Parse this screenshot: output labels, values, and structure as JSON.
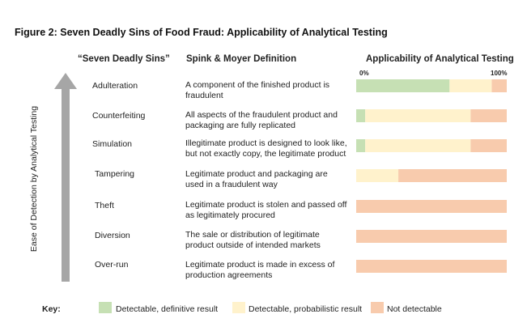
{
  "title": "Figure 2: Seven Deadly Sins of Food Fraud: Applicability of Analytical Testing",
  "headers": {
    "sins": "“Seven Deadly Sins”",
    "definition": "Spink & Moyer Definition",
    "applicability": "Applicability of Analytical Testing"
  },
  "scale": {
    "start": "0%",
    "end": "100%"
  },
  "y_axis_label": "Ease of Detection by Analytical Testing",
  "colors": {
    "definitive": "#c6e0b4",
    "probabilistic": "#fff2cc",
    "not_detectable": "#f8cbad",
    "arrow": "#a6a6a6"
  },
  "chart_data": {
    "type": "bar",
    "orientation": "horizontal",
    "stacked": true,
    "unit": "%",
    "xlim": [
      0,
      100
    ],
    "categories": [
      "Adulteration",
      "Counterfeiting",
      "Simulation",
      "Tampering",
      "Theft",
      "Diversion",
      "Over-run"
    ],
    "definitions": [
      "A component of the finished product is fraudulent",
      "All aspects of the fraudulent product and packaging are fully replicated",
      "Illegitimate product is designed to look like, but not exactly copy, the legitimate product",
      "Legitimate product and packaging are used in a fraudulent way",
      "Legitimate product is stolen and passed off as legitimately procured",
      "The sale or distribution of legitimate product outside of intended markets",
      "Legitimate product is made in excess of production agreements"
    ],
    "series": [
      {
        "name": "Detectable, definitive result",
        "values": [
          62,
          6,
          6,
          0,
          0,
          0,
          0
        ]
      },
      {
        "name": "Detectable, probabilistic result",
        "values": [
          28,
          70,
          70,
          28,
          0,
          0,
          0
        ]
      },
      {
        "name": "Not detectable",
        "values": [
          10,
          24,
          24,
          72,
          100,
          100,
          100
        ]
      }
    ]
  },
  "key": {
    "label": "Key:",
    "items": [
      "Detectable, definitive result",
      "Detectable, probabilistic result",
      "Not detectable"
    ]
  }
}
